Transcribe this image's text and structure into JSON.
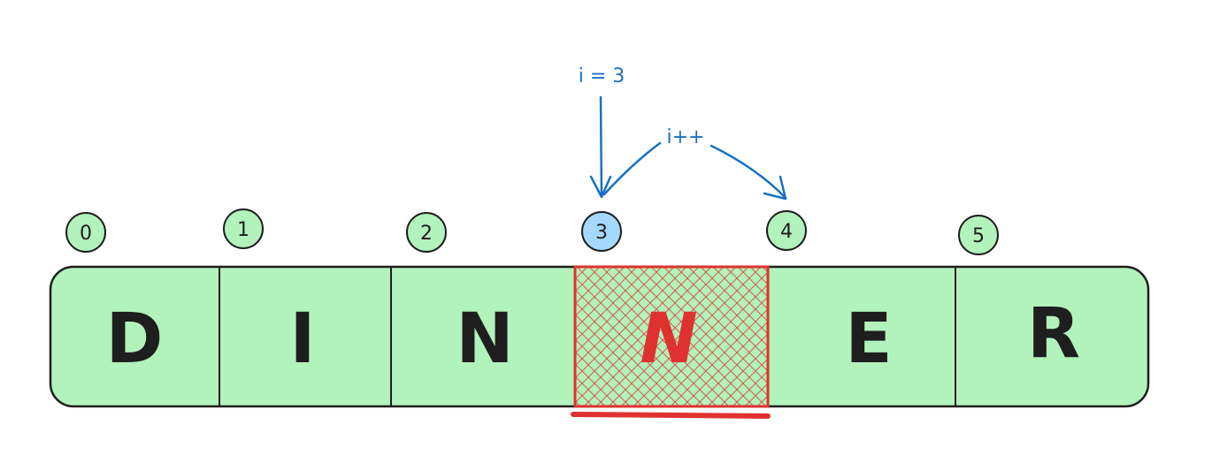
{
  "array": {
    "cells": [
      {
        "index": "0",
        "letter": "D"
      },
      {
        "index": "1",
        "letter": "I"
      },
      {
        "index": "2",
        "letter": "N"
      },
      {
        "index": "3",
        "letter": "N"
      },
      {
        "index": "4",
        "letter": "E"
      },
      {
        "index": "5",
        "letter": "R"
      }
    ],
    "active_index": 3,
    "colors": {
      "cell_fill": "#b2f2bb",
      "index_fill": "#b2f2bb",
      "active_index_fill": "#a5d8ff",
      "highlight": "#e03131",
      "stroke": "#1e1e1e",
      "annotation": "#1971c2"
    }
  },
  "annotations": {
    "pointer_label": "i = 3",
    "increment_label": "i++"
  }
}
